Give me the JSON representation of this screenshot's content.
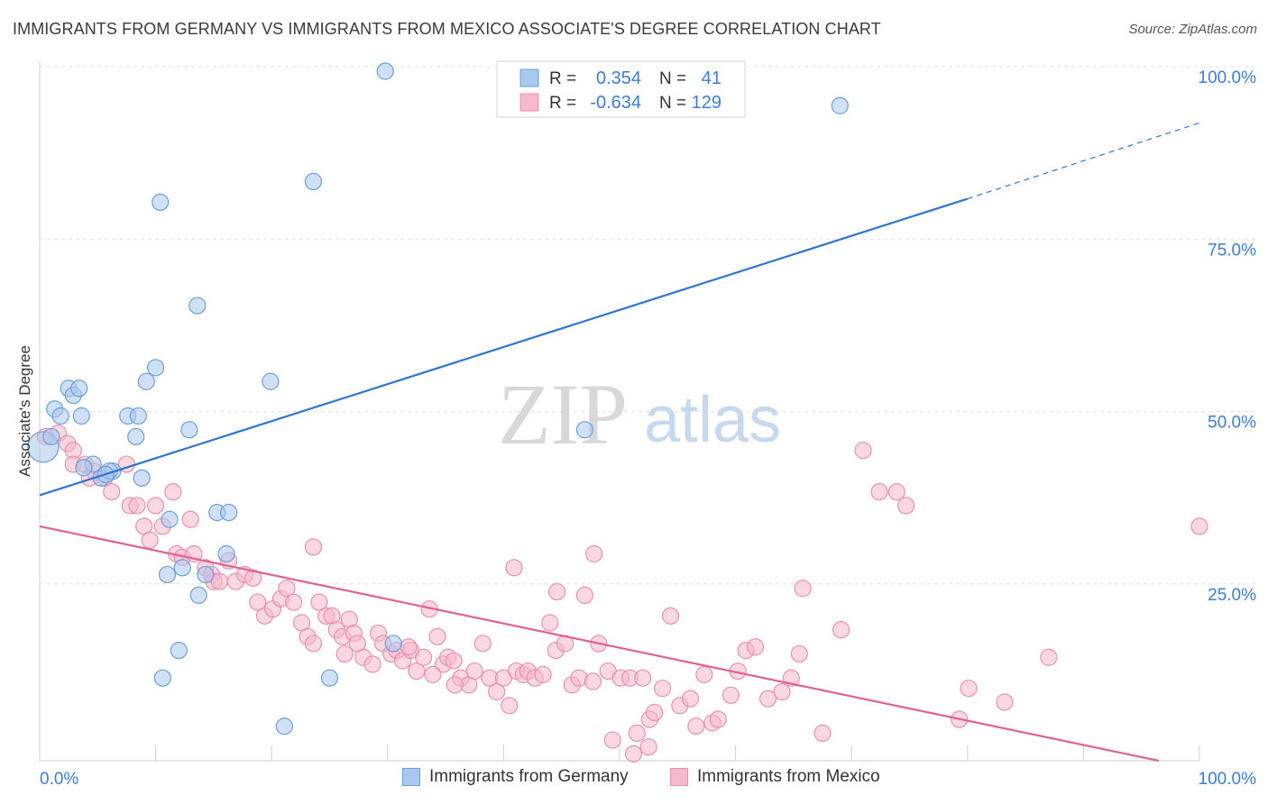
{
  "title": "IMMIGRANTS FROM GERMANY VS IMMIGRANTS FROM MEXICO ASSOCIATE'S DEGREE CORRELATION CHART",
  "source": "Source: ZipAtlas.com",
  "watermark": {
    "zip": "ZIP",
    "atlas": "atlas"
  },
  "colors": {
    "germany_fill": "#a9c8ee",
    "germany_stroke": "#6a9fdb",
    "germany_line": "#2f74d0",
    "mexico_fill": "#f6b8cb",
    "mexico_stroke": "#e891ad",
    "mexico_line": "#e0628f",
    "value_text": "#3b7dd8"
  },
  "legend_top": {
    "rows": [
      {
        "r_label": "R =",
        "r_value": "0.354",
        "n_label": "N =",
        "n_value": "41"
      },
      {
        "r_label": "R =",
        "r_value": "-0.634",
        "n_label": "N =",
        "n_value": "129"
      }
    ]
  },
  "legend_bottom": [
    "Immigrants from Germany",
    "Immigrants from Mexico"
  ],
  "chart_data": {
    "type": "scatter",
    "title": "IMMIGRANTS FROM GERMANY VS IMMIGRANTS FROM MEXICO ASSOCIATE'S DEGREE CORRELATION CHART",
    "xlabel": "",
    "ylabel": "Associate's Degree",
    "xlim": [
      0,
      100
    ],
    "ylim": [
      0,
      100
    ],
    "x_tick_labels": [
      "0.0%",
      "100.0%"
    ],
    "y_tick_labels": [
      "25.0%",
      "50.0%",
      "75.0%",
      "100.0%"
    ],
    "y_ticks": [
      25,
      50,
      75,
      100
    ],
    "grid": true,
    "series": [
      {
        "name": "Immigrants from Germany",
        "r": 0.354,
        "n": 41,
        "trend": {
          "x0": 0,
          "y0": 38.5,
          "x1": 80,
          "y1": 81.5,
          "dashed_to_x": 100,
          "dashed_to_y": 92.5
        },
        "points": [
          [
            0.3,
            45.5
          ],
          [
            2.5,
            54
          ],
          [
            1.3,
            51
          ],
          [
            1.8,
            50
          ],
          [
            3.6,
            50
          ],
          [
            2.9,
            53
          ],
          [
            3.4,
            54
          ],
          [
            4.6,
            43
          ],
          [
            5.3,
            41
          ],
          [
            6.3,
            42
          ],
          [
            6.0,
            42
          ],
          [
            7.6,
            50
          ],
          [
            8.5,
            50
          ],
          [
            8.3,
            47
          ],
          [
            8.8,
            41
          ],
          [
            9.2,
            55
          ],
          [
            10.0,
            57
          ],
          [
            10.4,
            81
          ],
          [
            11.2,
            35
          ],
          [
            11.0,
            27
          ],
          [
            12.3,
            28
          ],
          [
            12.9,
            48
          ],
          [
            13.6,
            66
          ],
          [
            13.7,
            24
          ],
          [
            14.3,
            27
          ],
          [
            15.3,
            36
          ],
          [
            16.1,
            30
          ],
          [
            16.3,
            36
          ],
          [
            19.9,
            55
          ],
          [
            23.6,
            84
          ],
          [
            25.0,
            12
          ],
          [
            29.8,
            100
          ],
          [
            21.1,
            5
          ],
          [
            12.0,
            16
          ],
          [
            10.6,
            12
          ],
          [
            47.0,
            48
          ],
          [
            69.0,
            95
          ],
          [
            30.5,
            17
          ],
          [
            3.8,
            42.5
          ],
          [
            5.7,
            41.5
          ],
          [
            1.0,
            47
          ]
        ]
      },
      {
        "name": "Immigrants from Mexico",
        "r": -0.634,
        "n": 129,
        "trend": {
          "x0": 0,
          "y0": 34,
          "x1": 96.5,
          "y1": 0
        },
        "points": [
          [
            0.5,
            47
          ],
          [
            1.6,
            47.5
          ],
          [
            2.4,
            46
          ],
          [
            2.9,
            45
          ],
          [
            2.9,
            43
          ],
          [
            3.9,
            43
          ],
          [
            4.3,
            41
          ],
          [
            4.7,
            42
          ],
          [
            5.6,
            41
          ],
          [
            6.2,
            39
          ],
          [
            7.5,
            43
          ],
          [
            7.8,
            37
          ],
          [
            8.4,
            37
          ],
          [
            9.0,
            34
          ],
          [
            9.5,
            32
          ],
          [
            10.0,
            37
          ],
          [
            10.6,
            34
          ],
          [
            11.5,
            39
          ],
          [
            11.8,
            30
          ],
          [
            12.3,
            29.5
          ],
          [
            13.0,
            35
          ],
          [
            13.3,
            30
          ],
          [
            14.3,
            28
          ],
          [
            14.8,
            27
          ],
          [
            15.0,
            26
          ],
          [
            15.5,
            26
          ],
          [
            16.3,
            29
          ],
          [
            16.9,
            26
          ],
          [
            17.7,
            27
          ],
          [
            18.4,
            26.5
          ],
          [
            18.8,
            23
          ],
          [
            19.4,
            21
          ],
          [
            20.1,
            22
          ],
          [
            20.8,
            23.5
          ],
          [
            21.3,
            25
          ],
          [
            21.9,
            23
          ],
          [
            22.6,
            20
          ],
          [
            23.1,
            18
          ],
          [
            23.6,
            17
          ],
          [
            24.1,
            23
          ],
          [
            24.7,
            21
          ],
          [
            25.2,
            21
          ],
          [
            25.6,
            19
          ],
          [
            26.1,
            18
          ],
          [
            26.7,
            20.5
          ],
          [
            27.1,
            18.5
          ],
          [
            27.4,
            17
          ],
          [
            27.9,
            15
          ],
          [
            28.7,
            14
          ],
          [
            29.2,
            18.5
          ],
          [
            29.6,
            17
          ],
          [
            30.3,
            15.5
          ],
          [
            30.8,
            16
          ],
          [
            31.3,
            14.5
          ],
          [
            32.0,
            16
          ],
          [
            32.5,
            13
          ],
          [
            33.1,
            15
          ],
          [
            33.6,
            22
          ],
          [
            34.3,
            18
          ],
          [
            34.8,
            14
          ],
          [
            35.2,
            15
          ],
          [
            35.7,
            14.5
          ],
          [
            36.3,
            12
          ],
          [
            37.0,
            11
          ],
          [
            37.5,
            13
          ],
          [
            38.2,
            17
          ],
          [
            38.8,
            12
          ],
          [
            39.4,
            10
          ],
          [
            40.0,
            12
          ],
          [
            40.5,
            8
          ],
          [
            41.1,
            13
          ],
          [
            41.7,
            12.5
          ],
          [
            42.1,
            13
          ],
          [
            42.7,
            12
          ],
          [
            43.4,
            12.5
          ],
          [
            44.0,
            20
          ],
          [
            44.5,
            16
          ],
          [
            45.3,
            17
          ],
          [
            45.9,
            11
          ],
          [
            46.5,
            12
          ],
          [
            47.0,
            24
          ],
          [
            47.7,
            11.5
          ],
          [
            48.2,
            17
          ],
          [
            49.0,
            13
          ],
          [
            49.4,
            3
          ],
          [
            50.1,
            12
          ],
          [
            50.9,
            12
          ],
          [
            51.5,
            4
          ],
          [
            52.0,
            12
          ],
          [
            52.6,
            6
          ],
          [
            53.0,
            7
          ],
          [
            53.7,
            10.5
          ],
          [
            54.4,
            21
          ],
          [
            55.2,
            8
          ],
          [
            56.1,
            9
          ],
          [
            56.6,
            5
          ],
          [
            57.3,
            12.5
          ],
          [
            58.0,
            5.5
          ],
          [
            58.5,
            6
          ],
          [
            59.6,
            9.5
          ],
          [
            60.9,
            16
          ],
          [
            61.7,
            16.5
          ],
          [
            62.8,
            9
          ],
          [
            64.0,
            10
          ],
          [
            64.8,
            12
          ],
          [
            65.5,
            15.5
          ],
          [
            65.8,
            25
          ],
          [
            67.5,
            4
          ],
          [
            69.1,
            19
          ],
          [
            71.0,
            45
          ],
          [
            72.4,
            39
          ],
          [
            73.9,
            39
          ],
          [
            74.7,
            37
          ],
          [
            79.3,
            6
          ],
          [
            80.1,
            10.5
          ],
          [
            83.2,
            8.5
          ],
          [
            87.0,
            15
          ],
          [
            100.0,
            34
          ],
          [
            52.5,
            2
          ],
          [
            51.2,
            1
          ],
          [
            35.8,
            11
          ],
          [
            40.9,
            28
          ],
          [
            47.8,
            30
          ],
          [
            23.6,
            31
          ],
          [
            26.3,
            15.5
          ],
          [
            31.8,
            16.5
          ],
          [
            33.9,
            12.5
          ],
          [
            44.6,
            24.5
          ],
          [
            60.2,
            13
          ]
        ]
      }
    ]
  },
  "axis": {
    "ylabel": "Associate's Degree",
    "x_min_label": "0.0%",
    "x_max_label": "100.0%"
  }
}
